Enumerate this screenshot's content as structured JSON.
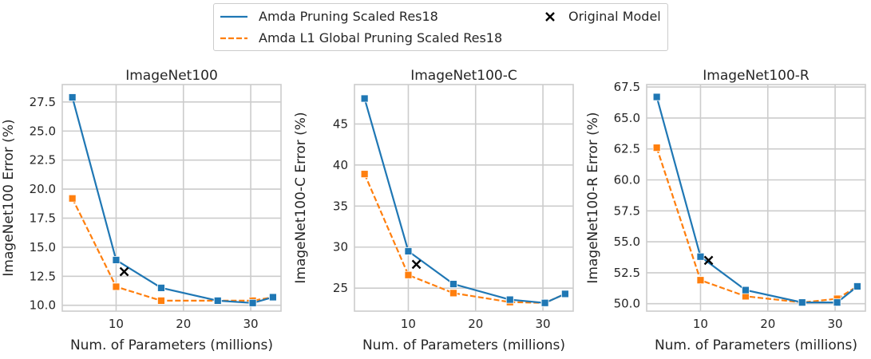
{
  "legend": {
    "items": [
      {
        "label": "Amda Pruning Scaled Res18",
        "style": "solid-line",
        "color": "#1f77b4"
      },
      {
        "label": "Amda L1 Global Pruning Scaled Res18",
        "style": "dashed-line",
        "color": "#ff7f0e"
      },
      {
        "label": "Original Model",
        "style": "x-marker",
        "color": "#000000"
      }
    ]
  },
  "colors": {
    "series1": "#1f77b4",
    "series2": "#ff7f0e",
    "original": "#000000",
    "grid": "#cccccc",
    "background": "#ffffff"
  },
  "chart_data": [
    {
      "type": "line",
      "title": "ImageNet100",
      "xlabel": "Num. of Parameters (millions)",
      "ylabel": "ImageNet100 Error (%)",
      "xlim": [
        2.0,
        34.5
      ],
      "ylim": [
        9.5,
        29.0
      ],
      "xticks": [
        10,
        20,
        30
      ],
      "yticks": [
        10.0,
        12.5,
        15.0,
        17.5,
        20.0,
        22.5,
        25.0,
        27.5
      ],
      "grid": true,
      "series": [
        {
          "name": "Amda Pruning Scaled Res18",
          "x": [
            3.5,
            10.0,
            16.7,
            25.1,
            30.3,
            33.3
          ],
          "y": [
            27.9,
            13.9,
            11.5,
            10.4,
            10.2,
            10.7
          ]
        },
        {
          "name": "Amda L1 Global Pruning Scaled Res18",
          "x": [
            3.5,
            10.0,
            16.7,
            25.1,
            30.3,
            33.3
          ],
          "y": [
            19.2,
            11.6,
            10.4,
            10.4,
            10.4,
            10.7
          ]
        }
      ],
      "original": {
        "x": 11.2,
        "y": 12.9
      }
    },
    {
      "type": "line",
      "title": "ImageNet100-C",
      "xlabel": "Num. of Parameters (millions)",
      "ylabel": "ImageNet100-C Error (%)",
      "xlim": [
        2.0,
        34.5
      ],
      "ylim": [
        22.2,
        49.8
      ],
      "xticks": [
        10,
        20,
        30
      ],
      "yticks": [
        25,
        30,
        35,
        40,
        45
      ],
      "grid": true,
      "series": [
        {
          "name": "Amda Pruning Scaled Res18",
          "x": [
            3.5,
            10.0,
            16.7,
            25.1,
            30.3,
            33.3
          ],
          "y": [
            48.1,
            29.5,
            25.5,
            23.6,
            23.2,
            24.3
          ]
        },
        {
          "name": "Amda L1 Global Pruning Scaled Res18",
          "x": [
            3.5,
            10.0,
            16.7,
            25.1,
            30.3,
            33.3
          ],
          "y": [
            38.9,
            26.6,
            24.4,
            23.3,
            23.2,
            24.3
          ]
        }
      ],
      "original": {
        "x": 11.2,
        "y": 27.9
      }
    },
    {
      "type": "line",
      "title": "ImageNet100-R",
      "xlabel": "Num. of Parameters (millions)",
      "ylabel": "ImageNet100-R Error (%)",
      "xlim": [
        2.0,
        34.5
      ],
      "ylim": [
        49.4,
        67.7
      ],
      "xticks": [
        10,
        20,
        30
      ],
      "yticks": [
        50.0,
        52.5,
        55.0,
        57.5,
        60.0,
        62.5,
        65.0,
        67.5
      ],
      "grid": true,
      "series": [
        {
          "name": "Amda Pruning Scaled Res18",
          "x": [
            3.5,
            10.0,
            16.7,
            25.1,
            30.3,
            33.3
          ],
          "y": [
            66.7,
            53.8,
            51.1,
            50.1,
            50.1,
            51.4
          ]
        },
        {
          "name": "Amda L1 Global Pruning Scaled Res18",
          "x": [
            3.5,
            10.0,
            16.7,
            25.1,
            30.3,
            33.3
          ],
          "y": [
            62.6,
            51.9,
            50.6,
            50.1,
            50.4,
            51.4
          ]
        }
      ],
      "original": {
        "x": 11.2,
        "y": 53.5
      }
    }
  ]
}
